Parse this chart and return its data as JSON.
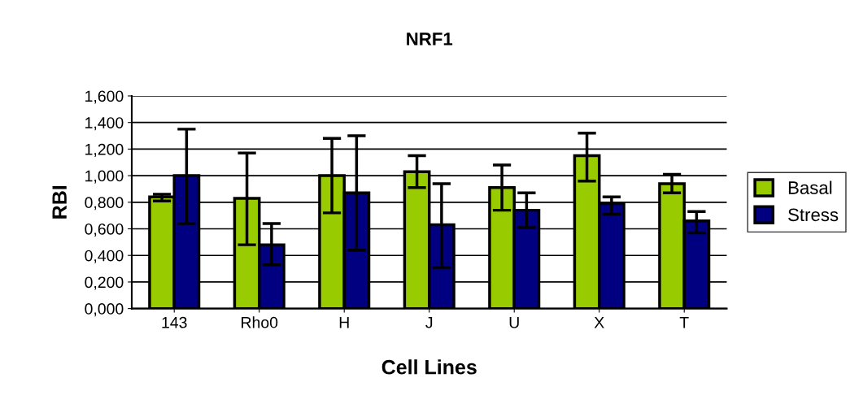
{
  "chart_data": {
    "type": "bar",
    "title": "NRF1",
    "xlabel": "Cell Lines",
    "ylabel": "RBI",
    "categories": [
      "143",
      "Rho0",
      "H",
      "J",
      "U",
      "X",
      "T"
    ],
    "series": [
      {
        "name": "Basal",
        "color": "#99cc00",
        "values": [
          0.84,
          0.83,
          1.0,
          1.03,
          0.91,
          1.15,
          0.94
        ],
        "errors": [
          [
            0.81,
            0.86
          ],
          [
            0.48,
            1.17
          ],
          [
            0.72,
            1.28
          ],
          [
            0.91,
            1.15
          ],
          [
            0.74,
            1.08
          ],
          [
            0.96,
            1.32
          ],
          [
            0.87,
            1.01
          ]
        ]
      },
      {
        "name": "Stress",
        "color": "#000080",
        "values": [
          1.0,
          0.48,
          0.87,
          0.63,
          0.74,
          0.79,
          0.66
        ],
        "errors": [
          [
            0.64,
            1.35
          ],
          [
            0.33,
            0.64
          ],
          [
            0.44,
            1.3
          ],
          [
            0.31,
            0.94
          ],
          [
            0.61,
            0.87
          ],
          [
            0.71,
            0.84
          ],
          [
            0.57,
            0.73
          ]
        ]
      }
    ],
    "ylim": [
      0,
      1.6
    ],
    "yticks": [
      {
        "value": 0,
        "label": "0,000"
      },
      {
        "value": 0.2,
        "label": "0,200"
      },
      {
        "value": 0.4,
        "label": "0,400"
      },
      {
        "value": 0.6,
        "label": "0,600"
      },
      {
        "value": 0.8,
        "label": "0,800"
      },
      {
        "value": 1.0,
        "label": "1,000"
      },
      {
        "value": 1.2,
        "label": "1,200"
      },
      {
        "value": 1.4,
        "label": "1,400"
      },
      {
        "value": 1.6,
        "label": "1,600"
      }
    ],
    "grid": "y",
    "legend": "right"
  }
}
